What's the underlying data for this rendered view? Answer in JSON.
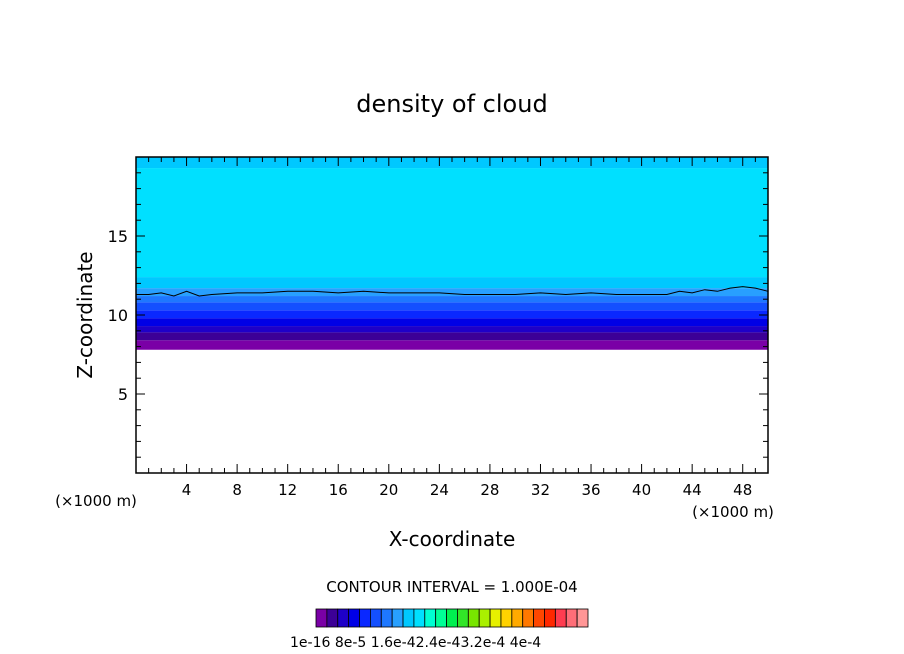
{
  "chart_data": {
    "type": "heatmap",
    "title": "density of cloud",
    "xlabel": "X-coordinate",
    "ylabel": "Z-coordinate",
    "x_unit_left": "(×1000 m)",
    "x_unit_right": "(×1000 m)",
    "xlim": [
      0,
      50
    ],
    "ylim": [
      0,
      20
    ],
    "x_ticks": [
      "4",
      "8",
      "12",
      "16",
      "20",
      "24",
      "28",
      "32",
      "36",
      "40",
      "44",
      "48"
    ],
    "y_ticks": [
      "5",
      "10",
      "15"
    ],
    "contour_interval_label": "CONTOUR INTERVAL = 1.000E-04",
    "colorbar_labels": [
      "1e-16",
      "8e-5",
      "1.6e-4",
      "2.4e-4",
      "3.2e-4",
      "4e-4"
    ],
    "colorbar_label_text": "1e-16 8e-5 1.6e-42.4e-43.2e-4 4e-4",
    "colorbar_colors": [
      "#7a00a6",
      "#3c0096",
      "#1e00c8",
      "#0000e6",
      "#0a28ff",
      "#1450ff",
      "#1e78ff",
      "#28a0ff",
      "#00c8ff",
      "#00e0ff",
      "#00ffd2",
      "#00ff96",
      "#00f050",
      "#32e628",
      "#78e600",
      "#aaf000",
      "#e6f000",
      "#ffd200",
      "#ffaa00",
      "#ff7800",
      "#ff4600",
      "#ff2800",
      "#ff3c50",
      "#ff6e78",
      "#ff9696"
    ],
    "layers": [
      {
        "z_bottom": 7.8,
        "z_top": 8.4,
        "color": "#7a00a6"
      },
      {
        "z_bottom": 8.4,
        "z_top": 8.9,
        "color": "#3c0096"
      },
      {
        "z_bottom": 8.9,
        "z_top": 9.3,
        "color": "#1e00c8"
      },
      {
        "z_bottom": 9.3,
        "z_top": 9.8,
        "color": "#0000e6"
      },
      {
        "z_bottom": 9.8,
        "z_top": 10.3,
        "color": "#0a28ff"
      },
      {
        "z_bottom": 10.3,
        "z_top": 10.8,
        "color": "#1450ff"
      },
      {
        "z_bottom": 10.8,
        "z_top": 11.2,
        "color": "#1e78ff"
      },
      {
        "z_bottom": 11.2,
        "z_top": 11.7,
        "color": "#28a0ff"
      },
      {
        "z_bottom": 11.7,
        "z_top": 12.4,
        "color": "#00c8ff"
      },
      {
        "z_bottom": 12.4,
        "z_top": 19.3,
        "color": "#00e0ff"
      },
      {
        "z_bottom": 19.3,
        "z_top": 20.0,
        "color": "#00c8ff"
      }
    ],
    "contour_line": {
      "color": "#000000",
      "x": [
        0,
        1,
        2,
        3,
        4,
        5,
        6,
        8,
        10,
        12,
        14,
        16,
        18,
        20,
        22,
        24,
        26,
        28,
        30,
        32,
        34,
        36,
        38,
        40,
        42,
        43,
        44,
        45,
        46,
        47,
        48,
        49,
        50
      ],
      "z": [
        11.3,
        11.3,
        11.4,
        11.2,
        11.5,
        11.2,
        11.3,
        11.4,
        11.4,
        11.5,
        11.5,
        11.4,
        11.5,
        11.4,
        11.4,
        11.4,
        11.3,
        11.3,
        11.3,
        11.4,
        11.3,
        11.4,
        11.3,
        11.3,
        11.3,
        11.5,
        11.4,
        11.6,
        11.5,
        11.7,
        11.8,
        11.7,
        11.5
      ]
    }
  }
}
